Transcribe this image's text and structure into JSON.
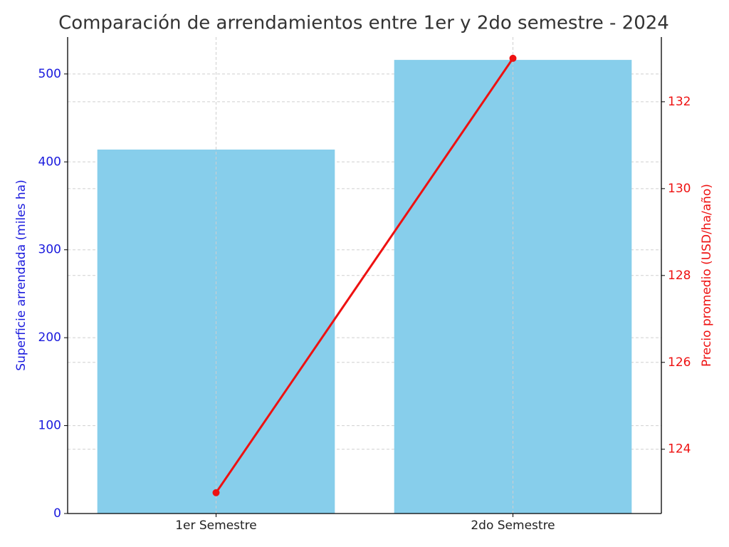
{
  "chart_data": {
    "type": "bar",
    "title": "Comparación de arrendamientos entre 1er y 2do semestre - 2024",
    "categories": [
      "1er Semestre",
      "2do Semestre"
    ],
    "series": [
      {
        "color": "#87ceeb",
        "values": [
          414,
          516
        ]
      },
      {
        "color": "#ee1111",
        "values": [
          123,
          133
        ],
        "axis": "y2",
        "type": "line"
      }
    ],
    "ylabel": "Superficie arrendada (miles ha)",
    "y2label": "Precio promedio (USD/ha/año)",
    "ylabel_color": "#1a1add",
    "y2label_color": "#ee1111",
    "ylim": [
      0,
      542
    ],
    "yticks": [
      0,
      100,
      200,
      300,
      400,
      500
    ],
    "y2lim": [
      122.52,
      133.49
    ],
    "y2ticks": [
      124,
      126,
      128,
      130,
      132
    ],
    "grid": true
  }
}
